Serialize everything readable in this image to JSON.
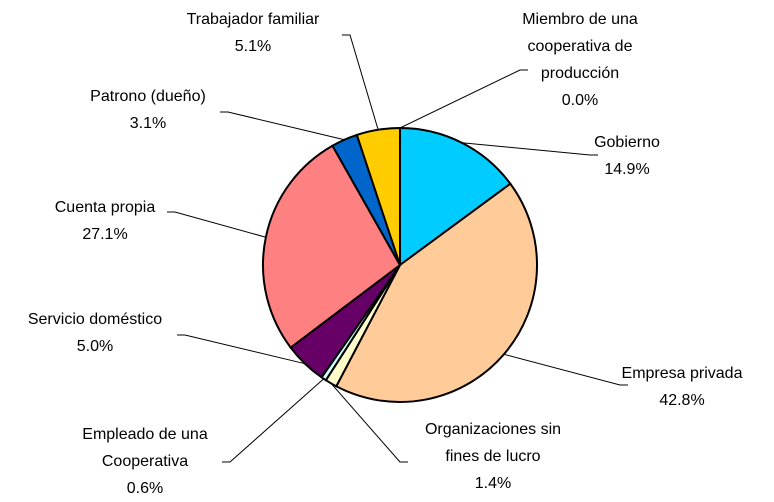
{
  "chart_data": {
    "type": "pie",
    "categories": [
      "Gobierno",
      "Empresa privada",
      "Organizaciones sin fines de lucro",
      "Empleado de una Cooperativa",
      "Servicio doméstico",
      "Cuenta propia",
      "Patrono (dueño)",
      "Trabajador familiar",
      "Miembro de una cooperativa de producción"
    ],
    "values": [
      14.9,
      42.8,
      1.4,
      0.6,
      5.0,
      27.1,
      3.1,
      5.1,
      0.0
    ],
    "value_labels": [
      "14.9%",
      "42.8%",
      "1.4%",
      "0.6%",
      "5.0%",
      "27.1%",
      "3.1%",
      "5.1%",
      "0.0%"
    ],
    "colors": [
      "#00ccff",
      "#ffcc99",
      "#ffffcc",
      "#ccffff",
      "#660066",
      "#ff8080",
      "#0066cc",
      "#ffcc00",
      "#ffffff"
    ]
  }
}
